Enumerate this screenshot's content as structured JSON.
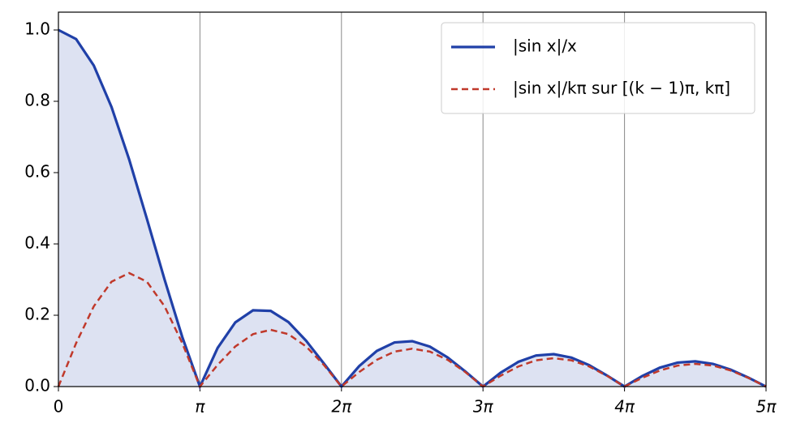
{
  "chart_data": {
    "type": "line",
    "x": [
      0,
      0.3927,
      0.7854,
      1.1781,
      1.5708,
      1.9635,
      2.3562,
      2.7489,
      3.1416,
      3.5343,
      3.927,
      4.3197,
      4.7124,
      5.1051,
      5.4978,
      5.8905,
      6.2832,
      6.6759,
      7.0686,
      7.4613,
      7.854,
      8.2467,
      8.6394,
      9.0321,
      9.4248,
      9.8175,
      10.2102,
      10.6029,
      10.9956,
      11.3883,
      11.781,
      12.1737,
      12.5664,
      12.9591,
      13.3518,
      13.7445,
      14.1372,
      14.5299,
      14.9226,
      15.3153,
      15.708
    ],
    "series": [
      {
        "name": "|sin x|/x",
        "color": "#2040a8",
        "fill": "#dde2f2",
        "values": [
          1,
          0.9745,
          0.9003,
          0.7842,
          0.6366,
          0.4705,
          0.3001,
          0.1392,
          0,
          0.1083,
          0.1801,
          0.2139,
          0.2122,
          0.181,
          0.1286,
          0.065,
          0,
          0.0573,
          0.1,
          0.1238,
          0.1273,
          0.112,
          0.0818,
          0.0424,
          0,
          0.039,
          0.0693,
          0.0871,
          0.0909,
          0.0811,
          0.06,
          0.0314,
          0,
          0.0295,
          0.053,
          0.0672,
          0.0707,
          0.0636,
          0.0474,
          0.025,
          0
        ]
      },
      {
        "name": "|sin x|/kπ sur [(k − 1)π, kπ]",
        "color": "#c0392b",
        "dash": true,
        "values": [
          0,
          0.1218,
          0.2251,
          0.2941,
          0.3183,
          0.2941,
          0.2251,
          0.1218,
          0,
          0.0609,
          0.1125,
          0.147,
          0.1592,
          0.147,
          0.1125,
          0.0609,
          0,
          0.0406,
          0.075,
          0.098,
          0.1061,
          0.098,
          0.075,
          0.0406,
          0,
          0.0305,
          0.0563,
          0.0735,
          0.0796,
          0.0735,
          0.0563,
          0.0305,
          0,
          0.0244,
          0.045,
          0.0588,
          0.0637,
          0.0588,
          0.045,
          0.0244,
          0
        ]
      }
    ],
    "xlim": [
      0,
      15.708
    ],
    "ylim": [
      0,
      1.05
    ],
    "xticks": [
      0,
      {
        "value": 3.1416,
        "label": "π"
      },
      {
        "value": 6.2832,
        "label": "2π"
      },
      {
        "value": 9.4248,
        "label": "3π"
      },
      {
        "value": 12.5664,
        "label": "4π"
      },
      {
        "value": 15.708,
        "label": "5π"
      }
    ],
    "yticks": [
      {
        "value": 0,
        "label": "0.0"
      },
      {
        "value": 0.2,
        "label": "0.2"
      },
      {
        "value": 0.4,
        "label": "0.4"
      },
      {
        "value": 0.6,
        "label": "0.6"
      },
      {
        "value": 0.8,
        "label": "0.8"
      },
      {
        "value": 1,
        "label": "1.0"
      }
    ],
    "grid": "x",
    "legend": "upper right"
  }
}
